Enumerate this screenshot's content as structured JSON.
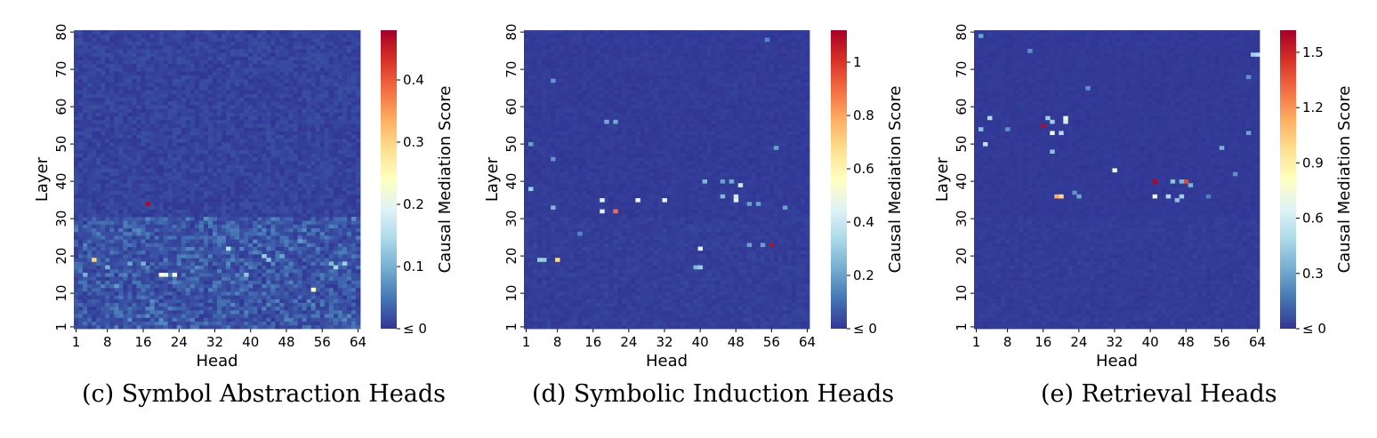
{
  "chart_data": [
    {
      "type": "heatmap",
      "caption": "(c) Symbol Abstraction Heads",
      "xlabel": "Head",
      "ylabel": "Layer",
      "x_ticks": [
        "1",
        "8",
        "16",
        "24",
        "32",
        "40",
        "48",
        "56",
        "64"
      ],
      "y_ticks": [
        "1",
        "10",
        "20",
        "30",
        "40",
        "50",
        "60",
        "70",
        "80"
      ],
      "heads": 64,
      "layers": 80,
      "colorbar_label": "Causal Mediation Score",
      "colorbar_ticks": [
        {
          "value": 0,
          "label": "≤ 0"
        },
        {
          "value": 0.1,
          "label": "0.1"
        },
        {
          "value": 0.2,
          "label": "0.2"
        },
        {
          "value": 0.3,
          "label": "0.3"
        },
        {
          "value": 0.4,
          "label": "0.4"
        }
      ],
      "vmin": 0,
      "vmax": 0.48,
      "background_level": 0.02,
      "low_layer_activity": 0.05,
      "hotspots": [
        {
          "head": 17,
          "layer": 34,
          "score": 0.47
        },
        {
          "head": 5,
          "layer": 19,
          "score": 0.3
        },
        {
          "head": 20,
          "layer": 15,
          "score": 0.24
        },
        {
          "head": 21,
          "layer": 15,
          "score": 0.2
        },
        {
          "head": 23,
          "layer": 15,
          "score": 0.22
        },
        {
          "head": 54,
          "layer": 11,
          "score": 0.24
        },
        {
          "head": 35,
          "layer": 22,
          "score": 0.15
        },
        {
          "head": 39,
          "layer": 15,
          "score": 0.12
        },
        {
          "head": 43,
          "layer": 20,
          "score": 0.13
        },
        {
          "head": 44,
          "layer": 19,
          "score": 0.12
        },
        {
          "head": 61,
          "layer": 18,
          "score": 0.13
        },
        {
          "head": 58,
          "layer": 18,
          "score": 0.11
        },
        {
          "head": 59,
          "layer": 17,
          "score": 0.14
        },
        {
          "head": 8,
          "layer": 17,
          "score": 0.1
        },
        {
          "head": 16,
          "layer": 18,
          "score": 0.1
        },
        {
          "head": 13,
          "layer": 18,
          "score": 0.09
        },
        {
          "head": 3,
          "layer": 15,
          "score": 0.1
        },
        {
          "head": 47,
          "layer": 20,
          "score": 0.09
        },
        {
          "head": 51,
          "layer": 24,
          "score": 0.08
        },
        {
          "head": 63,
          "layer": 30,
          "score": 0.07
        },
        {
          "head": 30,
          "layer": 30,
          "score": 0.07
        },
        {
          "head": 10,
          "layer": 12,
          "score": 0.08
        }
      ]
    },
    {
      "type": "heatmap",
      "caption": "(d) Symbolic Induction Heads",
      "xlabel": "Head",
      "ylabel": "Layer",
      "x_ticks": [
        "1",
        "8",
        "16",
        "24",
        "32",
        "40",
        "48",
        "56",
        "64"
      ],
      "y_ticks": [
        "1",
        "10",
        "20",
        "30",
        "40",
        "50",
        "60",
        "70",
        "80"
      ],
      "heads": 64,
      "layers": 80,
      "colorbar_label": "Causal Mediation Score",
      "colorbar_ticks": [
        {
          "value": 0,
          "label": "≤ 0"
        },
        {
          "value": 0.2,
          "label": "0.2"
        },
        {
          "value": 0.4,
          "label": "0.4"
        },
        {
          "value": 0.6,
          "label": "0.6"
        },
        {
          "value": 0.8,
          "label": "0.8"
        },
        {
          "value": 1,
          "label": "1"
        }
      ],
      "vmin": 0,
      "vmax": 1.12,
      "background_level": 0.02,
      "low_layer_activity": 0.015,
      "hotspots": [
        {
          "head": 21,
          "layer": 32,
          "score": 0.9
        },
        {
          "head": 56,
          "layer": 23,
          "score": 1.08
        },
        {
          "head": 8,
          "layer": 19,
          "score": 0.68
        },
        {
          "head": 18,
          "layer": 35,
          "score": 0.45
        },
        {
          "head": 18,
          "layer": 32,
          "score": 0.45
        },
        {
          "head": 26,
          "layer": 35,
          "score": 0.5
        },
        {
          "head": 32,
          "layer": 35,
          "score": 0.48
        },
        {
          "head": 48,
          "layer": 35,
          "score": 0.45
        },
        {
          "head": 48,
          "layer": 36,
          "score": 0.4
        },
        {
          "head": 49,
          "layer": 39,
          "score": 0.42
        },
        {
          "head": 40,
          "layer": 22,
          "score": 0.45
        },
        {
          "head": 5,
          "layer": 19,
          "score": 0.3
        },
        {
          "head": 4,
          "layer": 19,
          "score": 0.3
        },
        {
          "head": 39,
          "layer": 17,
          "score": 0.25
        },
        {
          "head": 40,
          "layer": 17,
          "score": 0.3
        },
        {
          "head": 41,
          "layer": 40,
          "score": 0.25
        },
        {
          "head": 45,
          "layer": 40,
          "score": 0.2
        },
        {
          "head": 47,
          "layer": 40,
          "score": 0.22
        },
        {
          "head": 45,
          "layer": 36,
          "score": 0.25
        },
        {
          "head": 51,
          "layer": 34,
          "score": 0.2
        },
        {
          "head": 53,
          "layer": 34,
          "score": 0.2
        },
        {
          "head": 54,
          "layer": 23,
          "score": 0.2
        },
        {
          "head": 51,
          "layer": 23,
          "score": 0.2
        },
        {
          "head": 19,
          "layer": 56,
          "score": 0.22
        },
        {
          "head": 21,
          "layer": 56,
          "score": 0.22
        },
        {
          "head": 2,
          "layer": 38,
          "score": 0.3
        },
        {
          "head": 7,
          "layer": 33,
          "score": 0.25
        },
        {
          "head": 2,
          "layer": 50,
          "score": 0.2
        },
        {
          "head": 7,
          "layer": 67,
          "score": 0.18
        },
        {
          "head": 57,
          "layer": 49,
          "score": 0.2
        },
        {
          "head": 59,
          "layer": 33,
          "score": 0.2
        },
        {
          "head": 7,
          "layer": 46,
          "score": 0.18
        },
        {
          "head": 13,
          "layer": 26,
          "score": 0.15
        },
        {
          "head": 55,
          "layer": 78,
          "score": 0.15
        }
      ]
    },
    {
      "type": "heatmap",
      "caption": "(e) Retrieval Heads",
      "xlabel": "Head",
      "ylabel": "Layer",
      "x_ticks": [
        "1",
        "8",
        "16",
        "24",
        "32",
        "40",
        "48",
        "56",
        "64"
      ],
      "y_ticks": [
        "1",
        "10",
        "20",
        "30",
        "40",
        "50",
        "60",
        "70",
        "80"
      ],
      "heads": 64,
      "layers": 80,
      "colorbar_label": "Causal Mediation Score",
      "colorbar_ticks": [
        {
          "value": 0,
          "label": "≤ 0"
        },
        {
          "value": 0.3,
          "label": "0.3"
        },
        {
          "value": 0.6,
          "label": "0.6"
        },
        {
          "value": 0.9,
          "label": "0.9"
        },
        {
          "value": 1.2,
          "label": "1.2"
        },
        {
          "value": 1.5,
          "label": "1.5"
        }
      ],
      "vmin": 0,
      "vmax": 1.62,
      "background_level": 0.02,
      "low_layer_activity": 0.02,
      "hotspots": [
        {
          "head": 16,
          "layer": 55,
          "score": 1.58
        },
        {
          "head": 41,
          "layer": 40,
          "score": 1.6
        },
        {
          "head": 48,
          "layer": 40,
          "score": 1.4
        },
        {
          "head": 19,
          "layer": 36,
          "score": 1.15
        },
        {
          "head": 20,
          "layer": 36,
          "score": 1.0
        },
        {
          "head": 32,
          "layer": 43,
          "score": 0.75
        },
        {
          "head": 41,
          "layer": 36,
          "score": 0.7
        },
        {
          "head": 21,
          "layer": 57,
          "score": 0.7
        },
        {
          "head": 21,
          "layer": 56,
          "score": 0.6
        },
        {
          "head": 18,
          "layer": 53,
          "score": 0.75
        },
        {
          "head": 20,
          "layer": 53,
          "score": 0.5
        },
        {
          "head": 17,
          "layer": 57,
          "score": 0.45
        },
        {
          "head": 18,
          "layer": 56,
          "score": 0.45
        },
        {
          "head": 3,
          "layer": 50,
          "score": 0.55
        },
        {
          "head": 4,
          "layer": 57,
          "score": 0.5
        },
        {
          "head": 2,
          "layer": 54,
          "score": 0.4
        },
        {
          "head": 64,
          "layer": 74,
          "score": 0.5
        },
        {
          "head": 63,
          "layer": 74,
          "score": 0.45
        },
        {
          "head": 18,
          "layer": 48,
          "score": 0.4
        },
        {
          "head": 44,
          "layer": 36,
          "score": 0.5
        },
        {
          "head": 47,
          "layer": 36,
          "score": 0.45
        },
        {
          "head": 46,
          "layer": 35,
          "score": 0.4
        },
        {
          "head": 45,
          "layer": 40,
          "score": 0.4
        },
        {
          "head": 49,
          "layer": 39,
          "score": 0.35
        },
        {
          "head": 47,
          "layer": 40,
          "score": 0.35
        },
        {
          "head": 56,
          "layer": 49,
          "score": 0.35
        },
        {
          "head": 59,
          "layer": 42,
          "score": 0.25
        },
        {
          "head": 62,
          "layer": 68,
          "score": 0.25
        },
        {
          "head": 2,
          "layer": 79,
          "score": 0.3
        },
        {
          "head": 8,
          "layer": 54,
          "score": 0.25
        },
        {
          "head": 13,
          "layer": 75,
          "score": 0.25
        },
        {
          "head": 24,
          "layer": 36,
          "score": 0.3
        },
        {
          "head": 26,
          "layer": 65,
          "score": 0.25
        },
        {
          "head": 62,
          "layer": 53,
          "score": 0.3
        },
        {
          "head": 23,
          "layer": 37,
          "score": 0.25
        },
        {
          "head": 53,
          "layer": 36,
          "score": 0.2
        }
      ]
    }
  ]
}
